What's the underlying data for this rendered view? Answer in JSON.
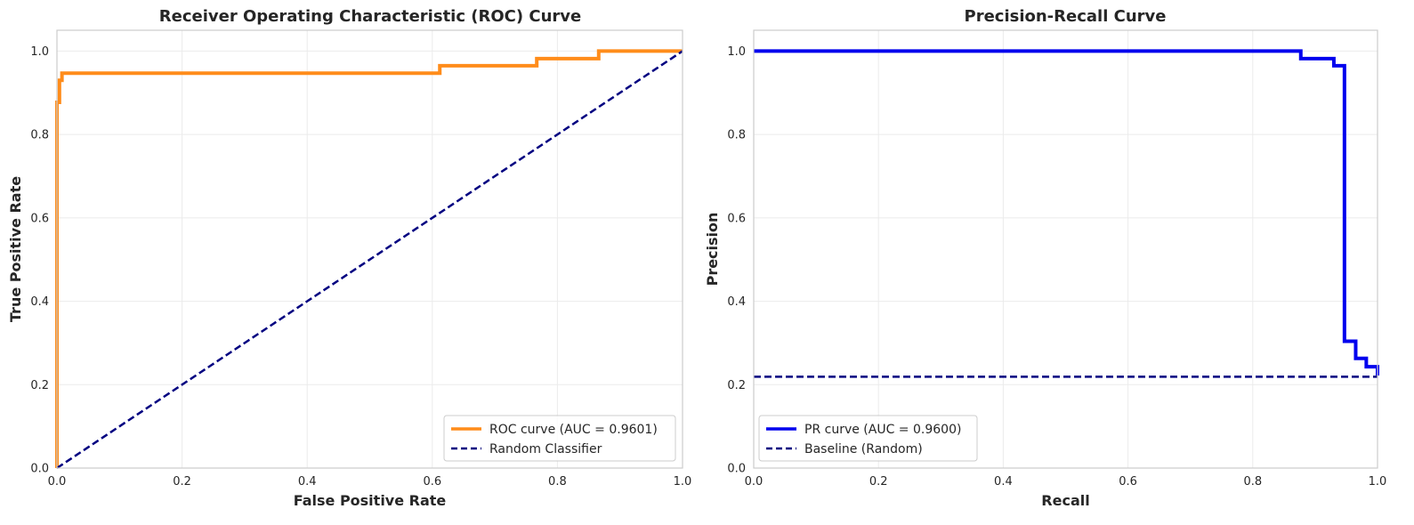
{
  "chart_data": [
    {
      "type": "line",
      "title": "Receiver Operating Characteristic (ROC) Curve",
      "xlabel": "False Positive Rate",
      "ylabel": "True Positive Rate",
      "xlim": [
        0.0,
        1.0
      ],
      "ylim": [
        0.0,
        1.05
      ],
      "xticks": [
        "0.0",
        "0.2",
        "0.4",
        "0.6",
        "0.8",
        "1.0"
      ],
      "yticks": [
        "0.0",
        "0.2",
        "0.4",
        "0.6",
        "0.8",
        "1.0"
      ],
      "grid": true,
      "legend_position": "lower-right",
      "series": [
        {
          "name": "ROC curve (AUC = 0.9601)",
          "color": "#ff8c1a",
          "style": "solid",
          "x": [
            0.0,
            0.0,
            0.004,
            0.004,
            0.008,
            0.008,
            0.612,
            0.612,
            0.767,
            0.767,
            0.866,
            0.866,
            1.0
          ],
          "y": [
            0.0,
            0.877,
            0.877,
            0.93,
            0.93,
            0.947,
            0.947,
            0.965,
            0.965,
            0.982,
            0.982,
            1.0,
            1.0
          ]
        },
        {
          "name": "Random Classifier",
          "color": "#000080",
          "style": "dashed",
          "x": [
            0.0,
            1.0
          ],
          "y": [
            0.0,
            1.0
          ]
        }
      ]
    },
    {
      "type": "line",
      "title": "Precision-Recall Curve",
      "xlabel": "Recall",
      "ylabel": "Precision",
      "xlim": [
        0.0,
        1.0
      ],
      "ylim": [
        0.0,
        1.05
      ],
      "xticks": [
        "0.0",
        "0.2",
        "0.4",
        "0.6",
        "0.8",
        "1.0"
      ],
      "yticks": [
        "0.0",
        "0.2",
        "0.4",
        "0.6",
        "0.8",
        "1.0"
      ],
      "grid": true,
      "legend_position": "lower-left",
      "series": [
        {
          "name": "PR curve (AUC = 0.9600)",
          "color": "#0000ee",
          "style": "solid",
          "x": [
            0.0,
            0.877,
            0.877,
            0.93,
            0.93,
            0.947,
            0.947,
            0.965,
            0.965,
            0.982,
            0.982,
            1.0,
            1.0
          ],
          "y": [
            1.0,
            1.0,
            0.982,
            0.982,
            0.965,
            0.965,
            0.304,
            0.304,
            0.263,
            0.263,
            0.243,
            0.243,
            0.222
          ]
        },
        {
          "name": "Baseline (Random)",
          "color": "#000080",
          "style": "dashed",
          "x": [
            0.0,
            1.0
          ],
          "y": [
            0.219,
            0.219
          ]
        }
      ]
    }
  ]
}
